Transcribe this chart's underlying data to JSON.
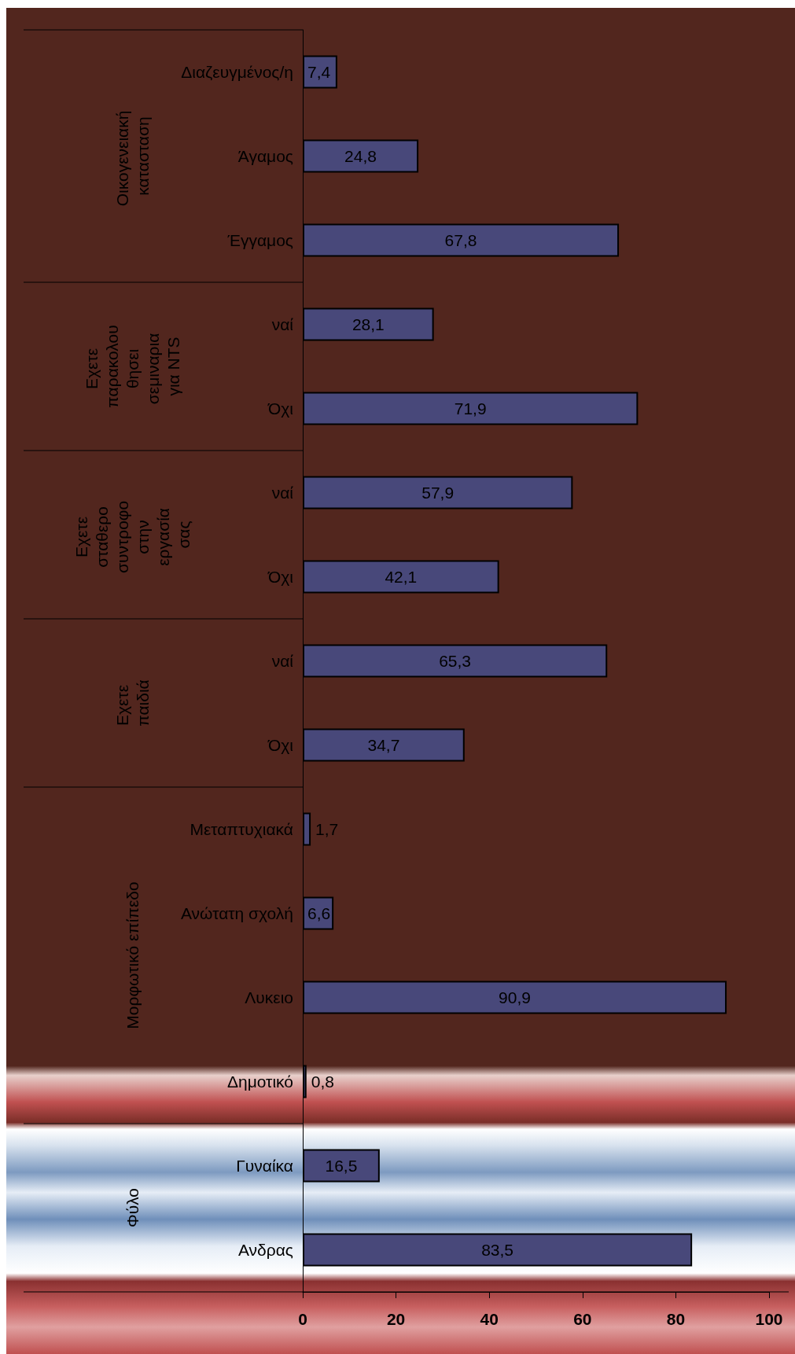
{
  "chart_data": {
    "type": "bar",
    "orientation": "horizontal",
    "categories": [
      "Διαζευγμένος/η",
      "Άγαμος",
      "Έγγαμος",
      "ναί",
      "Όχι",
      "ναί",
      "Όχι",
      "ναί",
      "Όχι",
      "Μεταπτυχιακά",
      "Ανώτατη σχολή",
      "Λυκειο",
      "Δημοτικό",
      "Γυναίκα",
      "Ανδρας"
    ],
    "values": [
      7.4,
      24.8,
      67.8,
      28.1,
      71.9,
      57.9,
      42.1,
      65.3,
      34.7,
      1.7,
      6.6,
      90.9,
      0.8,
      16.5,
      83.5
    ],
    "value_labels": [
      "7,4",
      "24,8",
      "67,8",
      "28,1",
      "71,9",
      "57,9",
      "42,1",
      "65,3",
      "34,7",
      "1,7",
      "6,6",
      "90,9",
      "0,8",
      "16,5",
      "83,5"
    ],
    "color": "#48487a",
    "xlim": [
      0,
      100
    ],
    "xticks": [
      0,
      20,
      40,
      60,
      80,
      100
    ],
    "annotations": [
      "Οικογενειακή κατασταση",
      "Εχετε παρακολουθησει σεμιναρια για NTS",
      "Εχετε σταθερο συντροφο στην εργασία σας",
      "Εχετε παιδιά",
      "Μορφωτικό επίπεδο",
      "Φύλο"
    ]
  }
}
